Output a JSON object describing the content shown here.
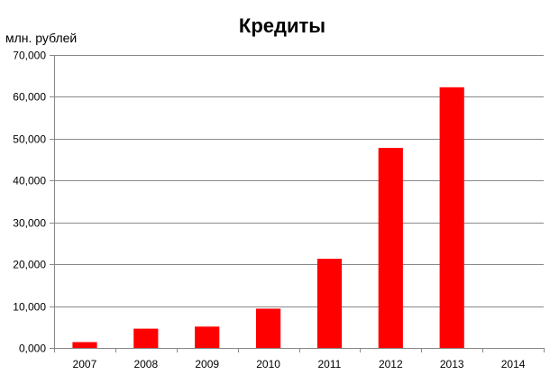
{
  "chart_data": {
    "type": "bar",
    "title": "Кредиты",
    "unit_label": "млн. рублей",
    "categories": [
      "2007",
      "2008",
      "2009",
      "2010",
      "2011",
      "2012",
      "2013",
      "2014"
    ],
    "series": [
      {
        "values": [
          1400,
          4600,
          5100,
          9400,
          21300,
          47800,
          62300,
          0
        ],
        "color": "#ff0000"
      }
    ],
    "ylim": [
      0,
      70000
    ],
    "y_ticks": [
      0,
      10000,
      20000,
      30000,
      40000,
      50000,
      60000,
      70000
    ],
    "y_tick_labels": [
      "0,000",
      "10,000",
      "20,000",
      "30,000",
      "40,000",
      "50,000",
      "60,000",
      "70,000"
    ],
    "grid": true,
    "grid_color": "#888888",
    "legend": "none",
    "bar_color": "#ff0000"
  }
}
